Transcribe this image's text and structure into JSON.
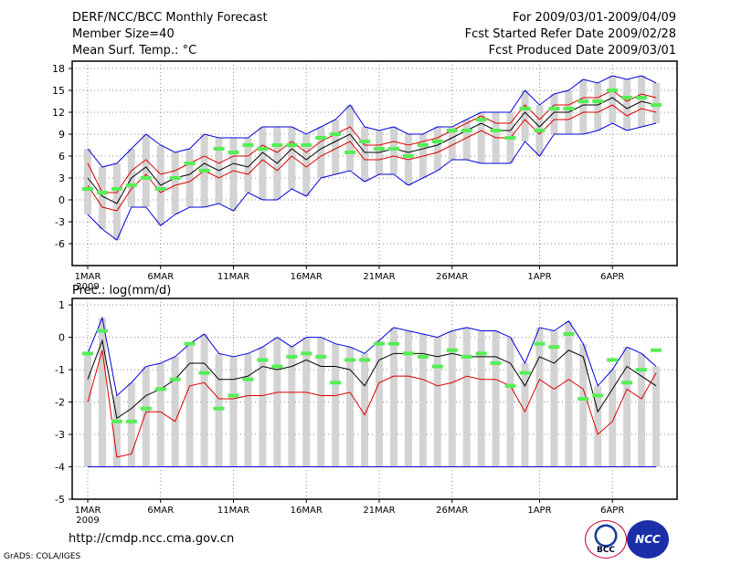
{
  "header": {
    "title": "DERF/NCC/BCC Monthly Forecast",
    "member_size": "Member Size=40",
    "variable": "Mean Surf. Temp.: °C",
    "forecast_period": "For 2009/03/01-2009/04/09",
    "refer_date": "Fcst Started Refer Date 2009/02/28",
    "produced_date": "Fcst Produced Date 2009/03/01"
  },
  "footer": {
    "url": "http://cmdp.ncc.cma.gov.cn",
    "credit": "GrADS: COLA/IGES",
    "logo_bcc": "BCC",
    "logo_ncc": "NCC"
  },
  "colors": {
    "box": "#d3d3d3",
    "mean": "#55ee55",
    "median": "#000000",
    "quartile": "#dd0000",
    "extreme": "#0000dd",
    "grid": "#888888"
  },
  "chart_data": [
    {
      "type": "line",
      "title": "Mean Surf. Temp.: °C",
      "ylabel": "°C",
      "ylim": [
        -9,
        19
      ],
      "yticks": [
        -6,
        -3,
        0,
        3,
        6,
        9,
        12,
        15,
        18
      ],
      "xticks": [
        {
          "day": 1,
          "label": "1MAR",
          "sub": "2009"
        },
        {
          "day": 6,
          "label": "6MAR"
        },
        {
          "day": 11,
          "label": "11MAR"
        },
        {
          "day": 16,
          "label": "16MAR"
        },
        {
          "day": 21,
          "label": "21MAR"
        },
        {
          "day": 26,
          "label": "26MAR"
        },
        {
          "day": 32,
          "label": "1APR"
        },
        {
          "day": 37,
          "label": "6APR"
        }
      ],
      "days": [
        1,
        2,
        3,
        4,
        5,
        6,
        7,
        8,
        9,
        10,
        11,
        12,
        13,
        14,
        15,
        16,
        17,
        18,
        19,
        20,
        21,
        22,
        23,
        24,
        25,
        26,
        27,
        28,
        29,
        30,
        31,
        32,
        33,
        34,
        35,
        36,
        37,
        38,
        39,
        40
      ],
      "series": [
        {
          "name": "max",
          "role": "extreme",
          "values": [
            7,
            4.5,
            5,
            7,
            9,
            7.5,
            6.5,
            7,
            9,
            8.5,
            8.5,
            8.5,
            10,
            10,
            10,
            9,
            10,
            11,
            13,
            10,
            9.5,
            10,
            9,
            9,
            10,
            10,
            11,
            12,
            12,
            12,
            15,
            13,
            14.5,
            15,
            16.5,
            16,
            17,
            16.5,
            17,
            16
          ]
        },
        {
          "name": "upper quartile",
          "role": "quartile",
          "values": [
            5,
            1,
            1,
            4,
            5.5,
            3.5,
            4,
            5,
            6,
            5,
            6,
            6,
            7.5,
            6.5,
            8,
            6.5,
            8,
            9,
            10,
            7.5,
            7.5,
            8,
            7.5,
            8,
            8.5,
            9.5,
            10.5,
            11.5,
            10.5,
            10.5,
            13,
            11,
            13,
            13,
            14,
            14,
            15,
            13.5,
            14.5,
            14
          ]
        },
        {
          "name": "median",
          "role": "median",
          "values": [
            3,
            0.5,
            -0.5,
            3,
            4.5,
            2,
            3,
            3.5,
            5,
            4,
            5,
            4.5,
            6.5,
            5,
            7,
            5.5,
            7,
            8,
            9,
            6.5,
            6.5,
            7,
            6.5,
            7,
            7.5,
            8.5,
            9.5,
            10.5,
            9.5,
            9.5,
            12,
            10,
            12,
            12,
            13,
            13,
            14,
            12.5,
            13.5,
            13
          ]
        },
        {
          "name": "lower quartile",
          "role": "quartile",
          "values": [
            2,
            -1,
            -1.5,
            1.5,
            3.5,
            1,
            2,
            2.5,
            4,
            3,
            4,
            3.5,
            5.5,
            4,
            6,
            4.5,
            6,
            7,
            8,
            5.5,
            5.5,
            6,
            5.5,
            6,
            6.5,
            7.5,
            8.5,
            9.5,
            8.5,
            8.5,
            11,
            9,
            11,
            11,
            12,
            12,
            13,
            11.5,
            12.5,
            12
          ]
        },
        {
          "name": "min",
          "role": "extreme",
          "values": [
            -2,
            -4,
            -5.5,
            -1,
            -1,
            -3.5,
            -2,
            -1,
            -1,
            -0.5,
            -1.5,
            1,
            0,
            0,
            1.5,
            0.5,
            3,
            3.5,
            4,
            2.5,
            3.5,
            3.5,
            2,
            3,
            4,
            5.5,
            5.5,
            5,
            5,
            5,
            8,
            6,
            9,
            9,
            9,
            9.5,
            10.5,
            9.5,
            10,
            10.5
          ]
        },
        {
          "name": "ensemble mean",
          "role": "mean",
          "values": [
            1.5,
            1,
            1.5,
            2,
            3,
            1.5,
            3,
            5,
            4,
            7,
            6.5,
            7.5,
            7,
            7.5,
            7.5,
            7.5,
            8.5,
            9,
            6.5,
            8,
            7,
            7,
            6,
            7.5,
            8,
            9.5,
            9.5,
            11,
            9.5,
            8.5,
            12.5,
            9.5,
            12.5,
            12.5,
            13.5,
            13.5,
            15,
            14,
            14,
            13
          ]
        }
      ]
    },
    {
      "type": "line",
      "title": "Prec.: log(mm/d)",
      "ylabel": "log(mm/d)",
      "ylim": [
        -5,
        1.2
      ],
      "yticks": [
        -5,
        -4,
        -3,
        -2,
        -1,
        0,
        1
      ],
      "xticks": [
        {
          "day": 1,
          "label": "1MAR",
          "sub": "2009"
        },
        {
          "day": 6,
          "label": "6MAR"
        },
        {
          "day": 11,
          "label": "11MAR"
        },
        {
          "day": 16,
          "label": "16MAR"
        },
        {
          "day": 21,
          "label": "21MAR"
        },
        {
          "day": 26,
          "label": "26MAR"
        },
        {
          "day": 32,
          "label": "1APR"
        },
        {
          "day": 37,
          "label": "6APR"
        }
      ],
      "days": [
        1,
        2,
        3,
        4,
        5,
        6,
        7,
        8,
        9,
        10,
        11,
        12,
        13,
        14,
        15,
        16,
        17,
        18,
        19,
        20,
        21,
        22,
        23,
        24,
        25,
        26,
        27,
        28,
        29,
        30,
        31,
        32,
        33,
        34,
        35,
        36,
        37,
        38,
        39,
        40
      ],
      "series": [
        {
          "name": "max",
          "role": "extreme",
          "values": [
            -0.5,
            0.6,
            -1.8,
            -1.4,
            -0.9,
            -0.8,
            -0.6,
            -0.2,
            0.1,
            -0.5,
            -0.6,
            -0.5,
            -0.3,
            0,
            -0.3,
            0,
            0,
            -0.2,
            -0.3,
            -0.5,
            -0.1,
            0.3,
            0.2,
            0.1,
            0,
            0.2,
            0.3,
            0.2,
            0.2,
            0,
            -0.8,
            0.3,
            0.2,
            0.5,
            -0.2,
            -1.5,
            -1,
            -0.3,
            -0.5,
            -0.9
          ]
        },
        {
          "name": "median",
          "role": "median",
          "values": [
            -1.3,
            -0.1,
            -2.5,
            -2.2,
            -1.8,
            -1.6,
            -1.3,
            -0.8,
            -0.8,
            -1.3,
            -1.3,
            -1.2,
            -0.9,
            -1,
            -0.9,
            -0.7,
            -0.9,
            -0.9,
            -1,
            -1.5,
            -0.7,
            -0.5,
            -0.5,
            -0.5,
            -0.6,
            -0.5,
            -0.6,
            -0.6,
            -0.6,
            -0.8,
            -1.5,
            -0.6,
            -0.8,
            -0.4,
            -0.6,
            -2.3,
            -1.6,
            -0.9,
            -1.2,
            -1.5
          ]
        },
        {
          "name": "lower quartile",
          "role": "quartile",
          "values": [
            -2,
            -0.4,
            -3.7,
            -3.6,
            -2.3,
            -2.3,
            -2.6,
            -1.5,
            -1.4,
            -1.9,
            -1.9,
            -1.8,
            -1.8,
            -1.7,
            -1.7,
            -1.7,
            -1.8,
            -1.8,
            -1.7,
            -2.4,
            -1.4,
            -1.2,
            -1.2,
            -1.3,
            -1.5,
            -1.4,
            -1.2,
            -1.3,
            -1.3,
            -1.5,
            -2.3,
            -1.3,
            -1.6,
            -1.3,
            -1.6,
            -3,
            -2.6,
            -1.6,
            -1.9,
            -1.1
          ]
        },
        {
          "name": "min",
          "role": "extreme",
          "values": [
            -4,
            -4,
            -4,
            -4,
            -4,
            -4,
            -4,
            -4,
            -4,
            -4,
            -4,
            -4,
            -4,
            -4,
            -4,
            -4,
            -4,
            -4,
            -4,
            -4,
            -4,
            -4,
            -4,
            -4,
            -4,
            -4,
            -4,
            -4,
            -4,
            -4,
            -4,
            -4,
            -4,
            -4,
            -4,
            -4,
            -4,
            -4,
            -4,
            -4
          ]
        },
        {
          "name": "ensemble mean",
          "role": "mean",
          "values": [
            -0.5,
            0.2,
            -2.6,
            -2.6,
            -2.2,
            -1.6,
            -1.3,
            -0.2,
            -1.1,
            -2.2,
            -1.8,
            -1.3,
            -0.7,
            -0.9,
            -0.6,
            -0.5,
            -0.6,
            -1.4,
            -0.7,
            -0.7,
            -0.2,
            -0.2,
            -0.5,
            -0.6,
            -0.9,
            -0.4,
            -0.6,
            -0.5,
            -0.8,
            -1.5,
            -1.1,
            -0.2,
            -0.3,
            0.1,
            -1.9,
            -1.8,
            -0.7,
            -1.4,
            -1,
            -0.4
          ]
        }
      ]
    }
  ]
}
